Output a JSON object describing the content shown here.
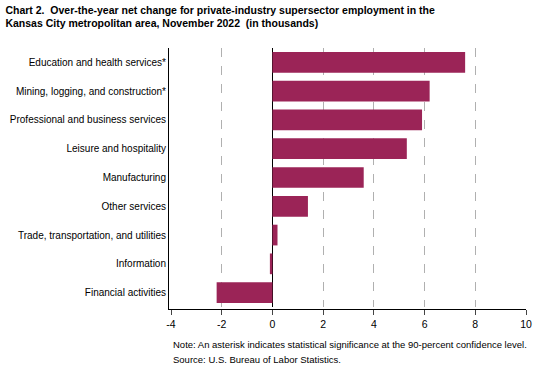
{
  "chart_data": {
    "type": "bar",
    "orientation": "horizontal",
    "title": "Chart 2.  Over-the-year net change for private-industry supersector employment in the",
    "subtitle": "Kansas City metropolitan area, November 2022  (in thousands)",
    "categories": [
      "Financial activities",
      "Information",
      "Trade, transportation, and utilities",
      "Other services",
      "Manufacturing",
      "Leisure and hospitality",
      "Professional and business services",
      "Mining, logging, and construction*",
      "Education and health services*"
    ],
    "values": [
      -2.2,
      -0.1,
      0.2,
      1.4,
      3.6,
      5.3,
      5.9,
      6.2,
      7.6
    ],
    "color": "#9b2457",
    "xlim": [
      -4,
      10
    ],
    "xticks": [
      -4,
      -2,
      0,
      2,
      4,
      6,
      8,
      10
    ],
    "grid": true,
    "annotations": [
      "Note: An asterisk indicates statistical significance at the 90-percent confidence level.",
      "Source: U.S. Bureau of Labor Statistics."
    ]
  }
}
